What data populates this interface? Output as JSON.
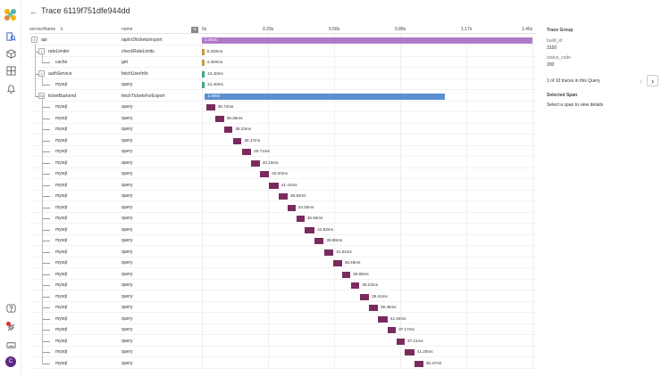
{
  "header": {
    "back_icon": "arrow-left-icon",
    "title": "Trace 6119f751dfe944dd"
  },
  "columns": {
    "service": "serviceName",
    "name": "name",
    "expand_label": "+"
  },
  "timeline": {
    "ticks": [
      "0s",
      "0.29s",
      "0.58s",
      "0.88s",
      "1.17s",
      "1.46s"
    ],
    "max_seconds": 1.46
  },
  "spans": [
    {
      "service": "api",
      "name": "/api/v2/tickets/export",
      "duration": "1.461s",
      "start_s": 0.0,
      "dur_s": 1.461,
      "color": "#b07ac7",
      "toggle": "4",
      "depth": 0
    },
    {
      "service": "rateLimiter",
      "name": "checkRateLimits",
      "duration": "8.200ms",
      "start_s": 0.0,
      "dur_s": 0.0082,
      "color": "#c79a45",
      "toggle": "1",
      "depth": 1
    },
    {
      "service": "cache",
      "name": "get",
      "duration": "4.300ms",
      "start_s": 0.0,
      "dur_s": 0.0043,
      "color": "#c79a45",
      "toggle": "",
      "depth": 2
    },
    {
      "service": "authService",
      "name": "fetchUserInfo",
      "duration": "12.40ms",
      "start_s": 0.0,
      "dur_s": 0.0124,
      "color": "#3fa88a",
      "toggle": "1",
      "depth": 1
    },
    {
      "service": "mysql",
      "name": "query",
      "duration": "12.40ms",
      "start_s": 0.0,
      "dur_s": 0.0124,
      "color": "#3fa88a",
      "toggle": "",
      "depth": 2
    },
    {
      "service": "ticketBackend",
      "name": "fetchTicketsForExport",
      "duration": "1.059s",
      "start_s": 0.0128,
      "dur_s": 1.059,
      "color": "#5b8fd0",
      "toggle": "2k",
      "depth": 1
    },
    {
      "service": "mysql",
      "name": "query",
      "duration": "38.74ms",
      "start_s": 0.0195,
      "dur_s": 0.0387,
      "color": "#7a2b5e",
      "toggle": "",
      "depth": 2
    },
    {
      "service": "mysql",
      "name": "query",
      "duration": "39.35ms",
      "start_s": 0.0584,
      "dur_s": 0.0393,
      "color": "#7a2b5e",
      "toggle": "",
      "depth": 2
    },
    {
      "service": "mysql",
      "name": "query",
      "duration": "38.23ms",
      "start_s": 0.0973,
      "dur_s": 0.0382,
      "color": "#7a2b5e",
      "toggle": "",
      "depth": 2
    },
    {
      "service": "mysql",
      "name": "query",
      "duration": "39.17ms",
      "start_s": 0.1362,
      "dur_s": 0.0392,
      "color": "#7a2b5e",
      "toggle": "",
      "depth": 2
    },
    {
      "service": "mysql",
      "name": "query",
      "duration": "40.71ms",
      "start_s": 0.1771,
      "dur_s": 0.0407,
      "color": "#7a2b5e",
      "toggle": "",
      "depth": 2
    },
    {
      "service": "mysql",
      "name": "query",
      "duration": "40.15ms",
      "start_s": 0.216,
      "dur_s": 0.0402,
      "color": "#7a2b5e",
      "toggle": "",
      "depth": 2
    },
    {
      "service": "mysql",
      "name": "query",
      "duration": "40.20ms",
      "start_s": 0.2569,
      "dur_s": 0.0402,
      "color": "#7a2b5e",
      "toggle": "",
      "depth": 2
    },
    {
      "service": "mysql",
      "name": "query",
      "duration": "41.41ms",
      "start_s": 0.2978,
      "dur_s": 0.0414,
      "color": "#7a2b5e",
      "toggle": "",
      "depth": 2
    },
    {
      "service": "mysql",
      "name": "query",
      "duration": "39.92ms",
      "start_s": 0.3387,
      "dur_s": 0.0399,
      "color": "#7a2b5e",
      "toggle": "",
      "depth": 2
    },
    {
      "service": "mysql",
      "name": "query",
      "duration": "33.36ms",
      "start_s": 0.3796,
      "dur_s": 0.0334,
      "color": "#7a2b5e",
      "toggle": "",
      "depth": 2
    },
    {
      "service": "mysql",
      "name": "query",
      "duration": "36.50ms",
      "start_s": 0.4166,
      "dur_s": 0.0365,
      "color": "#7a2b5e",
      "toggle": "",
      "depth": 2
    },
    {
      "service": "mysql",
      "name": "query",
      "duration": "42.83ms",
      "start_s": 0.4555,
      "dur_s": 0.0428,
      "color": "#7a2b5e",
      "toggle": "",
      "depth": 2
    },
    {
      "service": "mysql",
      "name": "query",
      "duration": "39.86ms",
      "start_s": 0.4983,
      "dur_s": 0.0399,
      "color": "#7a2b5e",
      "toggle": "",
      "depth": 2
    },
    {
      "service": "mysql",
      "name": "query",
      "duration": "41.61ms",
      "start_s": 0.5392,
      "dur_s": 0.0416,
      "color": "#7a2b5e",
      "toggle": "",
      "depth": 2
    },
    {
      "service": "mysql",
      "name": "query",
      "duration": "38.49ms",
      "start_s": 0.5801,
      "dur_s": 0.0385,
      "color": "#7a2b5e",
      "toggle": "",
      "depth": 2
    },
    {
      "service": "mysql",
      "name": "query",
      "duration": "35.96ms",
      "start_s": 0.6191,
      "dur_s": 0.036,
      "color": "#7a2b5e",
      "toggle": "",
      "depth": 2
    },
    {
      "service": "mysql",
      "name": "query",
      "duration": "38.23ms",
      "start_s": 0.658,
      "dur_s": 0.0382,
      "color": "#7a2b5e",
      "toggle": "",
      "depth": 2
    },
    {
      "service": "mysql",
      "name": "query",
      "duration": "39.41ms",
      "start_s": 0.6989,
      "dur_s": 0.0394,
      "color": "#7a2b5e",
      "toggle": "",
      "depth": 2
    },
    {
      "service": "mysql",
      "name": "query",
      "duration": "39.48ms",
      "start_s": 0.7378,
      "dur_s": 0.0395,
      "color": "#7a2b5e",
      "toggle": "",
      "depth": 2
    },
    {
      "service": "mysql",
      "name": "query",
      "duration": "41.94ms",
      "start_s": 0.7787,
      "dur_s": 0.0419,
      "color": "#7a2b5e",
      "toggle": "",
      "depth": 2
    },
    {
      "service": "mysql",
      "name": "query",
      "duration": "37.17ms",
      "start_s": 0.8196,
      "dur_s": 0.0372,
      "color": "#7a2b5e",
      "toggle": "",
      "depth": 2
    },
    {
      "service": "mysql",
      "name": "query",
      "duration": "37.21ms",
      "start_s": 0.8586,
      "dur_s": 0.0372,
      "color": "#7a2b5e",
      "toggle": "",
      "depth": 2
    },
    {
      "service": "mysql",
      "name": "query",
      "duration": "41.25ms",
      "start_s": 0.8975,
      "dur_s": 0.0413,
      "color": "#7a2b5e",
      "toggle": "",
      "depth": 2
    },
    {
      "service": "mysql",
      "name": "query",
      "duration": "39.47ms",
      "start_s": 0.9384,
      "dur_s": 0.0395,
      "color": "#7a2b5e",
      "toggle": "",
      "depth": 2
    }
  ],
  "right_panel": {
    "group_title": "Trace Group",
    "build_id_key": "build_id",
    "build_id_value": "3150",
    "status_key": "status_code",
    "status_value": "200",
    "trace_count": "1 of 10 traces in this Query",
    "selected_title": "Selected Span",
    "selected_hint": "Select a span to view details"
  },
  "rail_icons": [
    "logo-icon",
    "search-trace-icon",
    "cube-icon",
    "dashboard-icon",
    "bell-icon",
    "help-icon",
    "integrations-icon",
    "keyboard-icon"
  ],
  "user": {
    "initial": "C"
  }
}
